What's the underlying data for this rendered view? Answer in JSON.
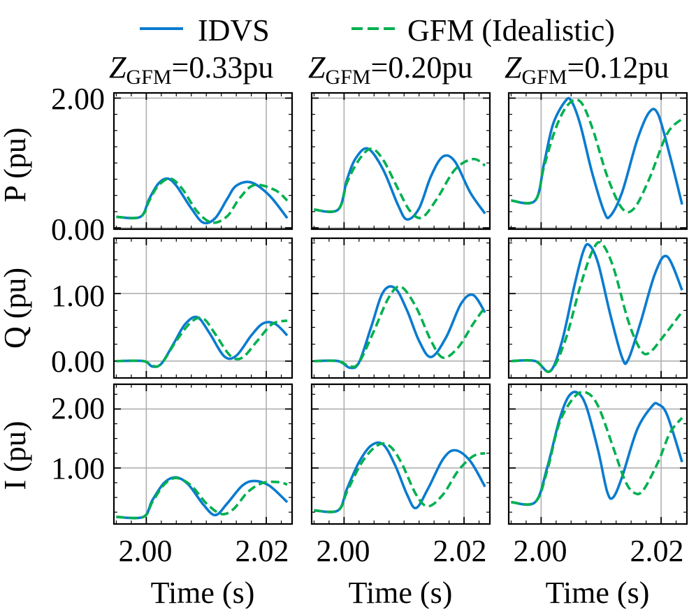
{
  "chart_data": {
    "type": "line",
    "legend": {
      "placement": "top",
      "entries": [
        {
          "label": "IDVS",
          "series": "idvs",
          "style": "solid",
          "color": "#0A7BCF"
        },
        {
          "label": "GFM (Idealistic)",
          "series": "gfm",
          "style": "dashed",
          "color": "#00B04F"
        }
      ]
    },
    "column_titles": [
      {
        "prefix": "Z",
        "subscript": "GFM",
        "suffix": "=0.33pu"
      },
      {
        "prefix": "Z",
        "subscript": "GFM",
        "suffix": "=0.20pu"
      },
      {
        "prefix": "Z",
        "subscript": "GFM",
        "suffix": "=0.12pu"
      }
    ],
    "rows": [
      {
        "key": "P",
        "ylabel": "P (pu)",
        "ylim": [
          -0.02,
          2.08
        ],
        "yticks": [
          0.0,
          2.0
        ],
        "ytick_labels": [
          "0.00",
          "2.00"
        ],
        "minor_step": 0.25
      },
      {
        "key": "Q",
        "ylabel": "Q (pu)",
        "ylim": [
          -0.25,
          1.82
        ],
        "yticks": [
          0.0,
          1.0
        ],
        "ytick_labels": [
          "0.00",
          "1.00"
        ],
        "minor_step": 0.25
      },
      {
        "key": "I",
        "ylabel": "I (pu)",
        "ylim": [
          0.05,
          2.42
        ],
        "yticks": [
          1.0,
          2.0
        ],
        "ytick_labels": [
          "1.00",
          "2.00"
        ],
        "minor_step": 0.25
      }
    ],
    "xlabel": "Time (s)",
    "xlim": [
      1.9946,
      2.0243
    ],
    "xticks": [
      2.0,
      2.02
    ],
    "xtick_labels": [
      "2.00",
      "2.02"
    ],
    "x_minor_step": 0.0025,
    "grid": true,
    "panels": {
      "P": [
        {
          "idvs": [
            [
              1.995,
              0.17
            ],
            [
              1.999,
              0.17
            ],
            [
              2.0005,
              0.45
            ],
            [
              2.002,
              0.68
            ],
            [
              2.0035,
              0.76
            ],
            [
              2.005,
              0.65
            ],
            [
              2.0075,
              0.3
            ],
            [
              2.0095,
              0.08
            ],
            [
              2.0115,
              0.15
            ],
            [
              2.0135,
              0.45
            ],
            [
              2.015,
              0.65
            ],
            [
              2.0175,
              0.7
            ],
            [
              2.0205,
              0.5
            ],
            [
              2.0235,
              0.15
            ]
          ],
          "gfm": [
            [
              1.995,
              0.17
            ],
            [
              1.999,
              0.17
            ],
            [
              2.0005,
              0.42
            ],
            [
              2.002,
              0.65
            ],
            [
              2.004,
              0.76
            ],
            [
              2.006,
              0.6
            ],
            [
              2.0085,
              0.25
            ],
            [
              2.011,
              0.08
            ],
            [
              2.0135,
              0.18
            ],
            [
              2.0155,
              0.45
            ],
            [
              2.018,
              0.66
            ],
            [
              2.0215,
              0.58
            ],
            [
              2.0235,
              0.42
            ]
          ]
        },
        {
          "idvs": [
            [
              1.995,
              0.28
            ],
            [
              1.999,
              0.28
            ],
            [
              2.0005,
              0.75
            ],
            [
              2.002,
              1.08
            ],
            [
              2.004,
              1.22
            ],
            [
              2.0065,
              0.9
            ],
            [
              2.009,
              0.35
            ],
            [
              2.0105,
              0.13
            ],
            [
              2.0125,
              0.3
            ],
            [
              2.0145,
              0.8
            ],
            [
              2.0165,
              1.1
            ],
            [
              2.0185,
              1.02
            ],
            [
              2.021,
              0.55
            ],
            [
              2.0235,
              0.22
            ]
          ],
          "gfm": [
            [
              1.995,
              0.28
            ],
            [
              1.999,
              0.28
            ],
            [
              2.0005,
              0.7
            ],
            [
              2.0025,
              1.05
            ],
            [
              2.0045,
              1.22
            ],
            [
              2.0065,
              1.05
            ],
            [
              2.009,
              0.6
            ],
            [
              2.011,
              0.26
            ],
            [
              2.013,
              0.16
            ],
            [
              2.0155,
              0.45
            ],
            [
              2.0185,
              0.9
            ],
            [
              2.0215,
              1.06
            ],
            [
              2.0235,
              0.96
            ]
          ]
        },
        {
          "idvs": [
            [
              1.995,
              0.42
            ],
            [
              1.999,
              0.42
            ],
            [
              2.0005,
              1.0
            ],
            [
              2.002,
              1.6
            ],
            [
              2.004,
              1.95
            ],
            [
              2.005,
              1.96
            ],
            [
              2.0065,
              1.6
            ],
            [
              2.0085,
              0.85
            ],
            [
              2.0105,
              0.25
            ],
            [
              2.0115,
              0.18
            ],
            [
              2.0135,
              0.55
            ],
            [
              2.016,
              1.35
            ],
            [
              2.018,
              1.78
            ],
            [
              2.0195,
              1.75
            ],
            [
              2.0215,
              1.1
            ],
            [
              2.0235,
              0.36
            ]
          ],
          "gfm": [
            [
              1.995,
              0.42
            ],
            [
              1.999,
              0.42
            ],
            [
              2.0005,
              0.95
            ],
            [
              2.0025,
              1.55
            ],
            [
              2.0045,
              1.9
            ],
            [
              2.0065,
              1.95
            ],
            [
              2.0085,
              1.55
            ],
            [
              2.011,
              0.8
            ],
            [
              2.0135,
              0.3
            ],
            [
              2.0155,
              0.3
            ],
            [
              2.018,
              0.75
            ],
            [
              2.021,
              1.45
            ],
            [
              2.0235,
              1.68
            ]
          ]
        }
      ],
      "Q": [
        {
          "idvs": [
            [
              1.995,
              0.0
            ],
            [
              1.9995,
              0.0
            ],
            [
              2.001,
              -0.08
            ],
            [
              2.0025,
              -0.04
            ],
            [
              2.0045,
              0.25
            ],
            [
              2.0065,
              0.55
            ],
            [
              2.0085,
              0.65
            ],
            [
              2.0105,
              0.42
            ],
            [
              2.013,
              0.07
            ],
            [
              2.015,
              0.08
            ],
            [
              2.0175,
              0.38
            ],
            [
              2.0195,
              0.56
            ],
            [
              2.0215,
              0.55
            ],
            [
              2.0235,
              0.38
            ]
          ],
          "gfm": [
            [
              1.995,
              0.0
            ],
            [
              1.9995,
              0.0
            ],
            [
              2.001,
              -0.07
            ],
            [
              2.0025,
              -0.04
            ],
            [
              2.005,
              0.3
            ],
            [
              2.0075,
              0.58
            ],
            [
              2.0095,
              0.63
            ],
            [
              2.0115,
              0.4
            ],
            [
              2.014,
              0.08
            ],
            [
              2.016,
              0.05
            ],
            [
              2.0185,
              0.3
            ],
            [
              2.021,
              0.55
            ],
            [
              2.0235,
              0.6
            ]
          ]
        },
        {
          "idvs": [
            [
              1.995,
              0.0
            ],
            [
              1.999,
              0.0
            ],
            [
              2.001,
              -0.1
            ],
            [
              2.0025,
              -0.02
            ],
            [
              2.0045,
              0.5
            ],
            [
              2.0065,
              1.02
            ],
            [
              2.0085,
              1.08
            ],
            [
              2.0105,
              0.75
            ],
            [
              2.0125,
              0.3
            ],
            [
              2.0145,
              0.06
            ],
            [
              2.017,
              0.35
            ],
            [
              2.0195,
              0.85
            ],
            [
              2.0215,
              0.98
            ],
            [
              2.0235,
              0.72
            ]
          ],
          "gfm": [
            [
              1.995,
              0.0
            ],
            [
              1.999,
              0.0
            ],
            [
              2.001,
              -0.08
            ],
            [
              2.0025,
              -0.02
            ],
            [
              2.005,
              0.45
            ],
            [
              2.0075,
              0.95
            ],
            [
              2.0095,
              1.1
            ],
            [
              2.012,
              0.8
            ],
            [
              2.0145,
              0.3
            ],
            [
              2.0165,
              0.05
            ],
            [
              2.019,
              0.2
            ],
            [
              2.0215,
              0.55
            ],
            [
              2.0235,
              0.8
            ]
          ]
        },
        {
          "idvs": [
            [
              1.995,
              0.0
            ],
            [
              1.999,
              0.0
            ],
            [
              2.0015,
              -0.15
            ],
            [
              2.0035,
              0.3
            ],
            [
              2.0055,
              1.1
            ],
            [
              2.007,
              1.62
            ],
            [
              2.008,
              1.72
            ],
            [
              2.0095,
              1.45
            ],
            [
              2.0115,
              0.7
            ],
            [
              2.0135,
              0.05
            ],
            [
              2.0145,
              0.02
            ],
            [
              2.0165,
              0.55
            ],
            [
              2.019,
              1.3
            ],
            [
              2.021,
              1.55
            ],
            [
              2.0235,
              1.05
            ]
          ],
          "gfm": [
            [
              1.995,
              0.0
            ],
            [
              1.999,
              0.0
            ],
            [
              2.0015,
              -0.15
            ],
            [
              2.004,
              0.3
            ],
            [
              2.0065,
              1.1
            ],
            [
              2.0085,
              1.62
            ],
            [
              2.01,
              1.75
            ],
            [
              2.012,
              1.4
            ],
            [
              2.0145,
              0.6
            ],
            [
              2.0165,
              0.18
            ],
            [
              2.018,
              0.12
            ],
            [
              2.0205,
              0.38
            ],
            [
              2.0235,
              0.73
            ]
          ]
        }
      ],
      "I": [
        {
          "idvs": [
            [
              1.995,
              0.17
            ],
            [
              1.9995,
              0.17
            ],
            [
              2.001,
              0.45
            ],
            [
              2.003,
              0.75
            ],
            [
              2.005,
              0.84
            ],
            [
              2.007,
              0.72
            ],
            [
              2.0095,
              0.38
            ],
            [
              2.0115,
              0.2
            ],
            [
              2.0135,
              0.4
            ],
            [
              2.016,
              0.7
            ],
            [
              2.018,
              0.78
            ],
            [
              2.0205,
              0.7
            ],
            [
              2.0235,
              0.42
            ]
          ],
          "gfm": [
            [
              1.995,
              0.17
            ],
            [
              1.9995,
              0.17
            ],
            [
              2.001,
              0.42
            ],
            [
              2.003,
              0.72
            ],
            [
              2.005,
              0.83
            ],
            [
              2.0075,
              0.7
            ],
            [
              2.01,
              0.4
            ],
            [
              2.0125,
              0.22
            ],
            [
              2.0145,
              0.3
            ],
            [
              2.017,
              0.6
            ],
            [
              2.0195,
              0.75
            ],
            [
              2.022,
              0.76
            ],
            [
              2.0235,
              0.72
            ]
          ]
        },
        {
          "idvs": [
            [
              1.995,
              0.28
            ],
            [
              1.999,
              0.28
            ],
            [
              2.0005,
              0.65
            ],
            [
              2.0025,
              1.1
            ],
            [
              2.0045,
              1.38
            ],
            [
              2.0065,
              1.4
            ],
            [
              2.0085,
              1.05
            ],
            [
              2.0105,
              0.55
            ],
            [
              2.012,
              0.32
            ],
            [
              2.014,
              0.65
            ],
            [
              2.0165,
              1.15
            ],
            [
              2.0185,
              1.3
            ],
            [
              2.021,
              1.12
            ],
            [
              2.0235,
              0.68
            ]
          ],
          "gfm": [
            [
              1.995,
              0.28
            ],
            [
              1.999,
              0.28
            ],
            [
              2.0005,
              0.6
            ],
            [
              2.003,
              1.1
            ],
            [
              2.0055,
              1.38
            ],
            [
              2.0075,
              1.38
            ],
            [
              2.0095,
              1.1
            ],
            [
              2.012,
              0.55
            ],
            [
              2.014,
              0.35
            ],
            [
              2.0165,
              0.55
            ],
            [
              2.019,
              0.95
            ],
            [
              2.0215,
              1.2
            ],
            [
              2.0235,
              1.25
            ]
          ]
        },
        {
          "idvs": [
            [
              1.995,
              0.42
            ],
            [
              1.999,
              0.42
            ],
            [
              2.001,
              1.0
            ],
            [
              2.003,
              1.8
            ],
            [
              2.0045,
              2.2
            ],
            [
              2.006,
              2.28
            ],
            [
              2.0075,
              2.05
            ],
            [
              2.0095,
              1.3
            ],
            [
              2.011,
              0.6
            ],
            [
              2.012,
              0.5
            ],
            [
              2.0135,
              0.85
            ],
            [
              2.016,
              1.65
            ],
            [
              2.0185,
              2.05
            ],
            [
              2.0195,
              2.08
            ],
            [
              2.021,
              1.9
            ],
            [
              2.0235,
              1.1
            ]
          ],
          "gfm": [
            [
              1.995,
              0.42
            ],
            [
              1.999,
              0.42
            ],
            [
              2.001,
              0.95
            ],
            [
              2.003,
              1.75
            ],
            [
              2.0055,
              2.2
            ],
            [
              2.0075,
              2.28
            ],
            [
              2.0095,
              2.05
            ],
            [
              2.012,
              1.35
            ],
            [
              2.014,
              0.78
            ],
            [
              2.0155,
              0.58
            ],
            [
              2.017,
              0.62
            ],
            [
              2.0195,
              1.1
            ],
            [
              2.0215,
              1.6
            ],
            [
              2.0235,
              1.85
            ]
          ]
        }
      ]
    }
  }
}
